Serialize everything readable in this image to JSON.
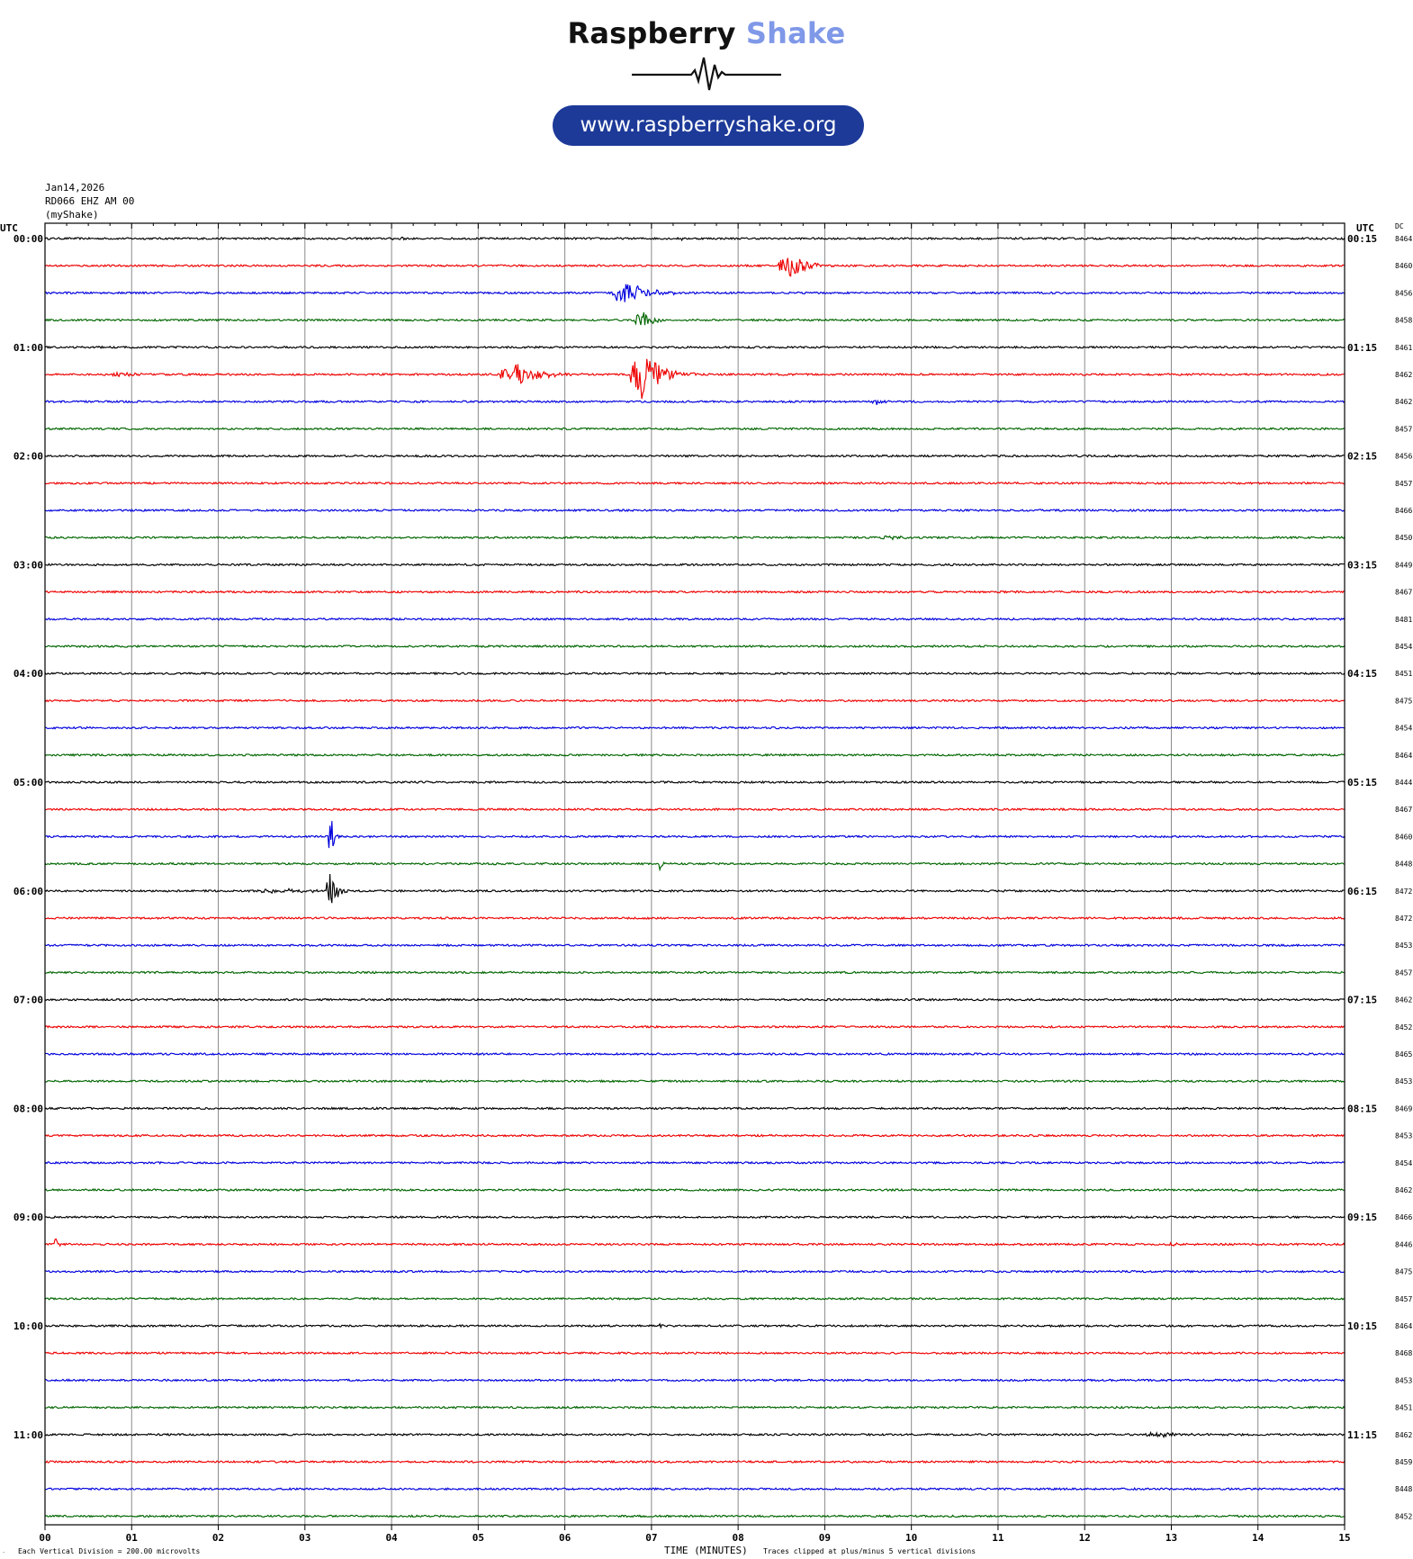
{
  "brand": {
    "name_part1": "Raspberry",
    "name_part2": "Shake",
    "url": "www.raspberryshake.org"
  },
  "header": {
    "date": "Jan14,2026",
    "station": "RD066 EHZ AM 00",
    "source": "(myShake)"
  },
  "labels": {
    "utc_left": "UTC",
    "utc_right": "UTC",
    "dc": "DC",
    "scale_note": "Each Vertical Division =  200.00 microvolts",
    "time_axis": "TIME (MINUTES)",
    "clip_note": "Traces clipped at plus/minus 5 vertical divisions"
  },
  "colors": {
    "cycle": [
      "#000000",
      "#ee0000",
      "#0000dd",
      "#006600"
    ],
    "brand_dark": "#111111",
    "brand_light": "#7f98e8",
    "url_bg": "#1d3a99"
  },
  "chart_data": {
    "type": "line",
    "title": "",
    "xlabel": "TIME (MINUTES)",
    "ylabel": "UTC",
    "xlim": [
      0,
      15
    ],
    "x_ticks": [
      "00",
      "01",
      "02",
      "03",
      "04",
      "05",
      "06",
      "07",
      "08",
      "09",
      "10",
      "11",
      "12",
      "13",
      "14",
      "15"
    ],
    "trace_minutes": 15,
    "left_hour_labels": [
      "00:00",
      "01:00",
      "02:00",
      "03:00",
      "04:00",
      "05:00",
      "06:00",
      "07:00",
      "08:00",
      "09:00",
      "10:00",
      "11:00"
    ],
    "right_hour_labels": [
      "00:15",
      "01:15",
      "02:15",
      "03:15",
      "04:15",
      "05:15",
      "06:15",
      "07:15",
      "08:15",
      "09:15",
      "10:15",
      "11:15"
    ],
    "dc_values": [
      8464,
      8460,
      8456,
      8458,
      8461,
      8462,
      8462,
      8457,
      8456,
      8457,
      8466,
      8450,
      8449,
      8467,
      8481,
      8454,
      8451,
      8475,
      8454,
      8464,
      8444,
      8467,
      8460,
      8448,
      8472,
      8472,
      8453,
      8457,
      8462,
      8452,
      8465,
      8453,
      8469,
      8453,
      8454,
      8462,
      8466,
      8446,
      8475,
      8457,
      8464,
      8468,
      8453,
      8451,
      8462,
      8459,
      8448,
      8452
    ],
    "events": [
      {
        "trace": 0,
        "minute": 4.1,
        "amp": 0.25,
        "width": 0.2
      },
      {
        "trace": 0,
        "minute": 7.35,
        "amp": 0.7,
        "width": 0.02
      },
      {
        "trace": 1,
        "minute": 8.6,
        "amp": 2.5,
        "width": 0.28
      },
      {
        "trace": 2,
        "minute": 6.7,
        "amp": 2.2,
        "width": 0.35
      },
      {
        "trace": 3,
        "minute": 6.9,
        "amp": 1.6,
        "width": 0.2
      },
      {
        "trace": 5,
        "minute": 0.9,
        "amp": 0.4,
        "width": 0.25
      },
      {
        "trace": 5,
        "minute": 5.45,
        "amp": 2.0,
        "width": 0.4
      },
      {
        "trace": 5,
        "minute": 6.9,
        "amp": 5.0,
        "width": 0.3
      },
      {
        "trace": 6,
        "minute": 9.6,
        "amp": 0.5,
        "width": 0.12
      },
      {
        "trace": 11,
        "minute": 9.75,
        "amp": 0.5,
        "width": 0.2
      },
      {
        "trace": 22,
        "minute": 3.3,
        "amp": 5.0,
        "width": 0.05
      },
      {
        "trace": 23,
        "minute": 7.1,
        "amp": 1.5,
        "width": 0.04
      },
      {
        "trace": 24,
        "minute": 2.8,
        "amp": 0.4,
        "width": 0.6
      },
      {
        "trace": 24,
        "minute": 3.3,
        "amp": 4.0,
        "width": 0.1
      },
      {
        "trace": 37,
        "minute": 0.12,
        "amp": 1.2,
        "width": 0.05
      },
      {
        "trace": 37,
        "minute": 13.0,
        "amp": 0.3,
        "width": 0.15
      },
      {
        "trace": 40,
        "minute": 7.1,
        "amp": 0.9,
        "width": 0.02
      },
      {
        "trace": 44,
        "minute": 12.9,
        "amp": 0.35,
        "width": 0.5
      }
    ]
  }
}
